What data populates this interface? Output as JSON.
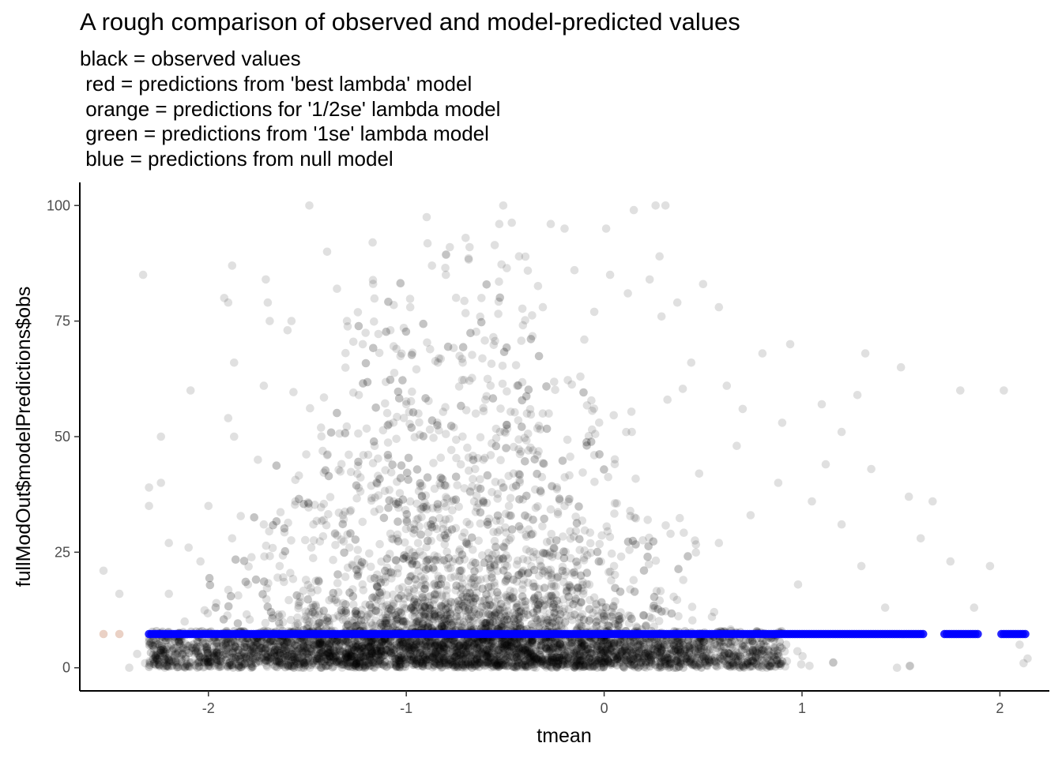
{
  "chart_data": {
    "type": "scatter",
    "title": "A rough comparison of observed and model-predicted values",
    "subtitle_lines": [
      "black = observed values",
      " red = predictions from 'best lambda' model",
      " orange = predictions for '1/2se' lambda model",
      " green = predictions from '1se' lambda model",
      " blue = predictions from null model"
    ],
    "xlabel": "tmean",
    "ylabel": "fullModOut$modelPredictions$obs",
    "xlim": [
      -2.65,
      2.25
    ],
    "ylim": [
      -5,
      105
    ],
    "x_ticks": [
      -2,
      -1,
      0,
      1,
      2
    ],
    "x_tick_labels": [
      "-2",
      "-1",
      "0",
      "1",
      "2"
    ],
    "y_ticks": [
      0,
      25,
      50,
      75,
      100
    ],
    "y_tick_labels": [
      "0",
      "25",
      "50",
      "75",
      "100"
    ],
    "grid": false,
    "legend": "none",
    "series": [
      {
        "name": "observed",
        "color": "#000000",
        "opacity": 0.12,
        "points": [
          [
            -2.53,
            21
          ],
          [
            -2.45,
            16
          ],
          [
            -2.33,
            85
          ],
          [
            -2.3,
            39
          ],
          [
            -2.24,
            40
          ],
          [
            -2.24,
            50
          ],
          [
            -2.3,
            35
          ],
          [
            -2.2,
            27
          ],
          [
            -2.1,
            26
          ],
          [
            -2.09,
            60
          ],
          [
            -2.0,
            35
          ],
          [
            -1.92,
            80
          ],
          [
            -1.9,
            79
          ],
          [
            -1.88,
            87
          ],
          [
            -1.87,
            66
          ],
          [
            -1.87,
            50
          ],
          [
            -1.9,
            54
          ],
          [
            -1.75,
            45
          ],
          [
            -1.72,
            61
          ],
          [
            -1.71,
            84
          ],
          [
            -1.7,
            79
          ],
          [
            -1.69,
            75
          ],
          [
            -1.6,
            73
          ],
          [
            -1.58,
            75
          ],
          [
            -1.49,
            100
          ],
          [
            -1.4,
            90
          ],
          [
            -1.35,
            82
          ],
          [
            -1.3,
            75
          ],
          [
            -1.22,
            70
          ],
          [
            -1.17,
            92
          ],
          [
            -1.08,
            73
          ],
          [
            -1.05,
            69
          ],
          [
            -0.98,
            78
          ],
          [
            -0.87,
            87
          ],
          [
            -0.8,
            85
          ],
          [
            -0.78,
            91
          ],
          [
            -0.7,
            93
          ],
          [
            -0.68,
            91
          ],
          [
            -0.62,
            80
          ],
          [
            -0.53,
            96
          ],
          [
            -0.51,
            100
          ],
          [
            -0.43,
            89
          ],
          [
            -0.31,
            78
          ],
          [
            -0.27,
            96
          ],
          [
            -0.2,
            95
          ],
          [
            -0.15,
            86
          ],
          [
            -0.1,
            71
          ],
          [
            -0.05,
            77
          ],
          [
            0.01,
            95
          ],
          [
            0.03,
            85
          ],
          [
            0.12,
            81
          ],
          [
            0.15,
            99
          ],
          [
            0.23,
            84
          ],
          [
            0.26,
            100
          ],
          [
            0.28,
            89
          ],
          [
            0.31,
            100
          ],
          [
            0.29,
            76
          ],
          [
            0.37,
            79
          ],
          [
            0.44,
            66
          ],
          [
            0.5,
            83
          ],
          [
            0.58,
            78
          ],
          [
            0.62,
            61
          ],
          [
            0.7,
            56
          ],
          [
            0.8,
            68
          ],
          [
            0.9,
            53
          ],
          [
            0.94,
            70
          ],
          [
            1.1,
            57
          ],
          [
            1.2,
            51
          ],
          [
            1.28,
            59
          ],
          [
            1.32,
            68
          ],
          [
            1.35,
            43
          ],
          [
            1.5,
            65
          ],
          [
            1.54,
            37
          ],
          [
            1.6,
            28
          ],
          [
            1.66,
            36
          ],
          [
            1.75,
            23
          ],
          [
            1.8,
            60
          ],
          [
            1.87,
            13
          ],
          [
            1.95,
            22
          ],
          [
            2.02,
            60
          ],
          [
            2.1,
            5
          ],
          [
            2.12,
            1
          ],
          [
            2.14,
            2
          ],
          [
            1.48,
            0
          ],
          [
            1.42,
            13
          ],
          [
            1.3,
            22
          ],
          [
            1.2,
            31
          ],
          [
            1.12,
            44
          ],
          [
            1.05,
            36
          ],
          [
            0.98,
            18
          ],
          [
            0.88,
            40
          ],
          [
            0.74,
            33
          ],
          [
            0.67,
            48
          ],
          [
            0.58,
            27
          ],
          [
            0.48,
            42
          ],
          [
            0.4,
            19
          ],
          [
            0.32,
            58
          ],
          [
            0.22,
            32
          ],
          [
            0.14,
            51
          ],
          [
            0.05,
            22
          ],
          [
            -0.05,
            46
          ],
          [
            -0.12,
            63
          ],
          [
            -0.2,
            35
          ],
          [
            -0.28,
            55
          ],
          [
            -0.36,
            29
          ],
          [
            -0.44,
            61
          ],
          [
            -0.52,
            40
          ],
          [
            -0.6,
            58
          ],
          [
            -0.68,
            31
          ],
          [
            -0.76,
            52
          ],
          [
            -0.84,
            66
          ],
          [
            -0.92,
            37
          ],
          [
            -1.0,
            57
          ],
          [
            -1.08,
            29
          ],
          [
            -1.16,
            48
          ],
          [
            -1.24,
            59
          ],
          [
            -1.32,
            33
          ],
          [
            -1.4,
            46
          ],
          [
            -1.48,
            26
          ],
          [
            -1.56,
            36
          ],
          [
            -1.64,
            22
          ],
          [
            -1.72,
            31
          ],
          [
            -1.8,
            18
          ],
          [
            -1.88,
            28
          ],
          [
            -1.96,
            14
          ],
          [
            -2.04,
            23
          ],
          [
            -2.12,
            10
          ],
          [
            -2.2,
            16
          ],
          [
            -2.28,
            6
          ],
          [
            -2.36,
            3
          ],
          [
            -2.4,
            0
          ],
          [
            -2.32,
            1
          ],
          [
            -2.22,
            0
          ]
        ]
      },
      {
        "name": "null model predictions",
        "color": "#0000ff",
        "opacity": 1,
        "x_range": [
          -2.3,
          2.13
        ],
        "y": 7.3
      }
    ]
  }
}
